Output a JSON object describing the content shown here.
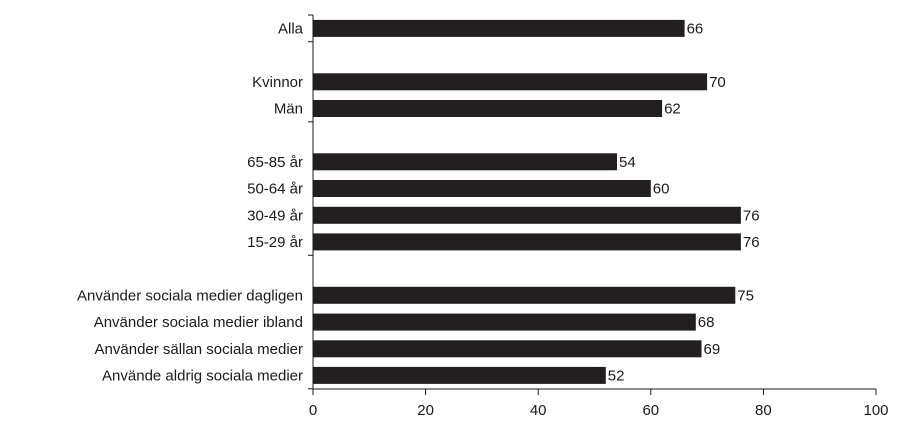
{
  "chart_data": {
    "type": "bar",
    "orientation": "horizontal",
    "title": "",
    "xlabel": "",
    "ylabel": "",
    "xlim": [
      0,
      100
    ],
    "x_ticks": [
      0,
      20,
      40,
      60,
      80,
      100
    ],
    "grid": false,
    "bar_color": "#231f20",
    "categories": [
      "Alla",
      "Kvinnor",
      "Män",
      "65-85 år",
      "50-64 år",
      "30-49 år",
      "15-29 år",
      "Använder sociala medier dagligen",
      "Använder sociala medier ibland",
      "Använder sällan sociala medier",
      "Använde aldrig sociala medier"
    ],
    "groups": [
      [
        "Alla"
      ],
      [
        "Kvinnor",
        "Män"
      ],
      [
        "65-85 år",
        "50-64 år",
        "30-49 år",
        "15-29 år"
      ],
      [
        "Använder sociala medier dagligen",
        "Använder sociala medier ibland",
        "Använder sällan sociala medier",
        "Använde aldrig sociala medier"
      ]
    ],
    "values": [
      66,
      70,
      62,
      54,
      60,
      76,
      76,
      75,
      68,
      69,
      52
    ]
  }
}
